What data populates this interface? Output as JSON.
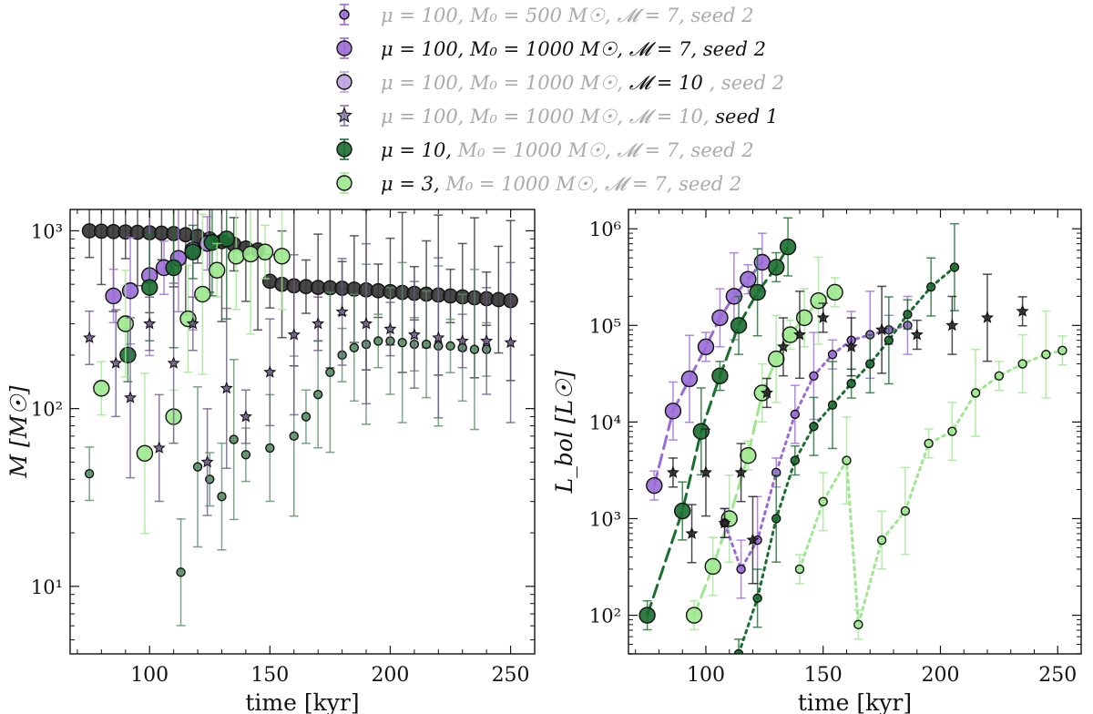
{
  "chart_data": {
    "type": "scatter",
    "legend": {
      "placement": "top-center",
      "entries": [
        {
          "id": "e1",
          "marker": "circle-small",
          "color": "#9a6bd6",
          "parts": [
            {
              "t": "μ = 100, M₀ = 500 M☉,",
              "dim": true
            },
            {
              "t": "𝓜 = 7,",
              "dim": true
            },
            {
              "t": "seed 2",
              "dim": true
            }
          ]
        },
        {
          "id": "e2",
          "marker": "circle",
          "color": "#9a6bd6",
          "parts": [
            {
              "t": "μ = 100, M₀ = 1000 M☉, 𝓜 = 7,",
              "dim": false
            },
            {
              "t": "seed 2",
              "dim": false
            }
          ]
        },
        {
          "id": "e3",
          "marker": "circle",
          "color": "#b9a3dd",
          "parts": [
            {
              "t": "μ = 100, M₀ = 1000 M☉,",
              "dim": true
            },
            {
              "t": "𝓜 = 10",
              "dim": false
            },
            {
              "t": ", seed 2",
              "dim": true
            }
          ]
        },
        {
          "id": "e4",
          "marker": "star",
          "color": "#8a7aa8",
          "parts": [
            {
              "t": "μ = 100, M₀ = 1000 M☉, 𝓜 = 10,",
              "dim": true
            },
            {
              "t": "seed 1",
              "dim": false
            }
          ]
        },
        {
          "id": "e5",
          "marker": "circle",
          "color": "#1a6e30",
          "parts": [
            {
              "t": "μ = 10,",
              "dim": false
            },
            {
              "t": "M₀ = 1000 M☉, 𝓜 = 7,",
              "dim": true
            },
            {
              "t": "seed 2",
              "dim": true
            }
          ]
        },
        {
          "id": "e6",
          "marker": "circle",
          "color": "#9de88e",
          "parts": [
            {
              "t": "μ = 3,",
              "dim": false
            },
            {
              "t": "M₀ = 1000 M☉, 𝓜 = 7,",
              "dim": true
            },
            {
              "t": "seed 2",
              "dim": true
            }
          ]
        }
      ]
    },
    "panels": [
      {
        "id": "mass",
        "xlabel": "time [kyr]",
        "ylabel": "M [M☉]",
        "xlim": [
          67,
          260
        ],
        "ylim_log10": [
          0.62,
          3.12
        ],
        "xticks": [
          100,
          150,
          200,
          250
        ],
        "yticks": [
          {
            "v": 10,
            "label": "10¹"
          },
          {
            "v": 100,
            "label": "10²"
          },
          {
            "v": 1000,
            "label": "10³"
          }
        ],
        "series": [
          {
            "name": "stars_M",
            "color": "#333333",
            "marker": "circle",
            "size": 9,
            "line": "none",
            "x": [
              75,
              80,
              85,
              90,
              95,
              100,
              105,
              110,
              115,
              120,
              125,
              130,
              135,
              140,
              145,
              150,
              155,
              160,
              165,
              170,
              175,
              180,
              185,
              190,
              195,
              200,
              205,
              210,
              215,
              220,
              225,
              230,
              235,
              240,
              245,
              250
            ],
            "y": [
              1000,
              995,
              990,
              985,
              980,
              975,
              970,
              965,
              950,
              930,
              900,
              870,
              840,
              800,
              780,
              520,
              500,
              490,
              485,
              480,
              478,
              475,
              470,
              465,
              460,
              455,
              450,
              445,
              440,
              435,
              430,
              425,
              420,
              415,
              410,
              405
            ]
          },
          {
            "name": "purple_main",
            "color": "#9a6bd6",
            "marker": "circle",
            "size": 10,
            "line": "none",
            "x": [
              85,
              92,
              100,
              106,
              112,
              118,
              124
            ],
            "y": [
              430,
              460,
              560,
              620,
              700,
              780,
              850
            ]
          },
          {
            "name": "green_main",
            "color": "#1a6e30",
            "marker": "circle",
            "size": 10,
            "line": "none",
            "x": [
              91,
              100,
              110,
              118,
              126,
              132
            ],
            "y": [
              200,
              480,
              620,
              760,
              860,
              900
            ]
          },
          {
            "name": "light_main",
            "color": "#9de88e",
            "marker": "circle",
            "size": 10,
            "line": "none",
            "x": [
              80,
              90,
              98,
              110,
              116,
              122,
              128,
              136,
              142,
              148,
              155
            ],
            "y": [
              130,
              300,
              56,
              90,
              320,
              440,
              600,
              720,
              740,
              760,
              720
            ]
          },
          {
            "name": "low_scatter",
            "color": "#5a8f66",
            "marker": "circle-small",
            "size": 6,
            "line": "none",
            "x": [
              75,
              113,
              120,
              125,
              130,
              135,
              140,
              150,
              160,
              165,
              170,
              175,
              180,
              185,
              190,
              195,
              200,
              205,
              210,
              215,
              220,
              225,
              230,
              235,
              240
            ],
            "y": [
              43,
              12,
              47,
              40,
              32,
              67,
              55,
              60,
              70,
              90,
              120,
              160,
              200,
              220,
              230,
              240,
              240,
              235,
              230,
              230,
              225,
              225,
              220,
              215,
              215
            ]
          },
          {
            "name": "star_scatter",
            "color": "#6b5a86",
            "marker": "star",
            "size": 7,
            "line": "none",
            "x": [
              75,
              86,
              92,
              100,
              104,
              110,
              118,
              124,
              132,
              140,
              150,
              160,
              170,
              180,
              190,
              200,
              210,
              220,
              230,
              240,
              250
            ],
            "y": [
              250,
              180,
              115,
              300,
              60,
              180,
              300,
              50,
              130,
              90,
              160,
              260,
              300,
              350,
              300,
              280,
              260,
              250,
              240,
              240,
              235
            ]
          }
        ]
      },
      {
        "id": "lum",
        "xlabel": "time [kyr]",
        "ylabel": "L_bol [L☉]",
        "xlim": [
          67,
          260
        ],
        "ylim_log10": [
          1.6,
          6.2
        ],
        "xticks": [
          100,
          150,
          200,
          250
        ],
        "yticks": [
          {
            "v": 100,
            "label": "10²"
          },
          {
            "v": 1000,
            "label": "10³"
          },
          {
            "v": 10000,
            "label": "10⁴"
          },
          {
            "v": 100000,
            "label": "10⁵"
          },
          {
            "v": 1000000,
            "label": "10⁶"
          }
        ],
        "series": [
          {
            "name": "purple_track",
            "color": "#9a6bd6",
            "marker": "circle",
            "size": 10,
            "line": "dashed",
            "x": [
              78,
              86,
              93,
              100,
              106,
              112,
              118,
              124
            ],
            "y": [
              2200,
              13000,
              28000,
              60000,
              120000,
              200000,
              300000,
              450000
            ]
          },
          {
            "name": "green_track",
            "color": "#1a6e30",
            "marker": "circle",
            "size": 10,
            "line": "dashed",
            "x": [
              75,
              90,
              98,
              106,
              114,
              122,
              130,
              135
            ],
            "y": [
              100,
              1200,
              8000,
              30000,
              100000,
              220000,
              400000,
              650000
            ]
          },
          {
            "name": "light_track",
            "color": "#9de88e",
            "marker": "circle",
            "size": 10,
            "line": "dashed",
            "x": [
              95,
              103,
              110,
              118,
              124,
              130,
              136,
              142,
              148,
              155
            ],
            "y": [
              100,
              320,
              1000,
              4500,
              20000,
              45000,
              80000,
              120000,
              180000,
              220000
            ]
          },
          {
            "name": "purple_tail",
            "color": "#9a6bd6",
            "marker": "circle-small",
            "size": 6,
            "line": "dotted",
            "x": [
              108,
              115,
              122,
              130,
              138,
              146,
              154,
              162,
              170,
              178,
              186
            ],
            "y": [
              900,
              300,
              600,
              3000,
              12000,
              30000,
              50000,
              70000,
              80000,
              90000,
              100000
            ]
          },
          {
            "name": "green_tail",
            "color": "#1a6e30",
            "marker": "circle-small",
            "size": 6,
            "line": "dotted",
            "x": [
              114,
              122,
              130,
              138,
              146,
              154,
              162,
              170,
              178,
              186,
              196,
              206
            ],
            "y": [
              40,
              150,
              1000,
              4000,
              9000,
              15000,
              25000,
              40000,
              70000,
              130000,
              250000,
              400000
            ]
          },
          {
            "name": "light_tail",
            "color": "#9de88e",
            "marker": "circle-small",
            "size": 6,
            "line": "dotted",
            "x": [
              140,
              150,
              160,
              165,
              175,
              185,
              195,
              205,
              215,
              225,
              235,
              245,
              252
            ],
            "y": [
              300,
              1500,
              4000,
              80,
              600,
              1200,
              6000,
              8000,
              20000,
              30000,
              40000,
              50000,
              55000
            ]
          },
          {
            "name": "star_scatter_L",
            "color": "#1f1f1f",
            "marker": "star",
            "size": 7,
            "line": "none",
            "x": [
              86,
              94,
              100,
              108,
              115,
              120,
              126,
              133,
              140,
              150,
              162,
              175,
              190,
              205,
              220,
              235
            ],
            "y": [
              3000,
              700,
              3000,
              900,
              3000,
              600,
              20000,
              60000,
              80000,
              120000,
              60000,
              90000,
              80000,
              100000,
              120000,
              140000
            ]
          }
        ]
      }
    ]
  }
}
